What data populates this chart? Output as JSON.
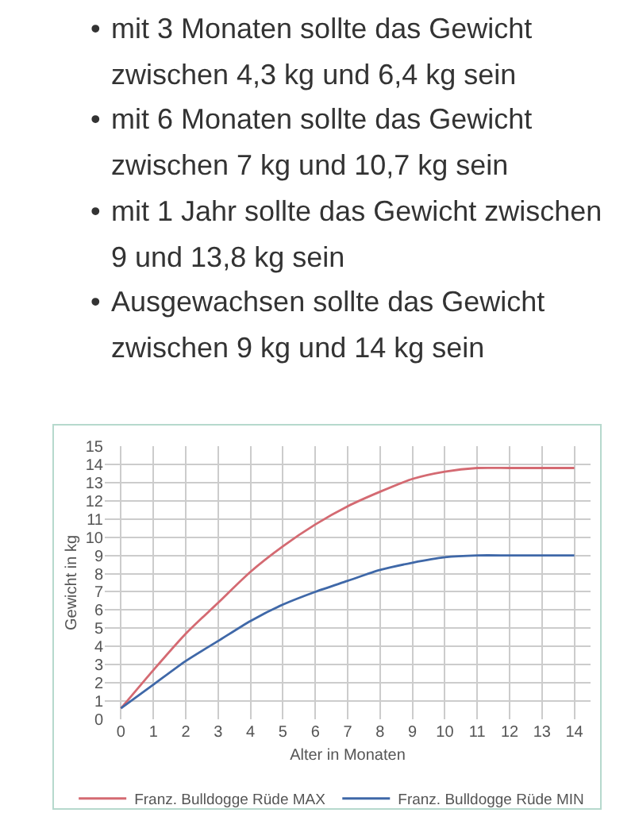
{
  "chart_data": {
    "type": "line",
    "xlabel": "Alter in Monaten",
    "ylabel": "Gewicht in kg",
    "annotations": [
      "• mit 3 Monaten sollte das Gewicht zwischen 4,3 kg und 6,4 kg sein",
      "• mit 6 Monaten sollte das Gewicht zwischen 7 kg und 10,7 kg sein",
      "• mit 1 Jahr sollte das Gewicht zwischen 9 und 13,8 kg sein",
      "• Ausgewachsen sollte das Gewicht zwischen 9 kg und 14 kg sein"
    ],
    "x": [
      0,
      1,
      2,
      3,
      4,
      5,
      6,
      7,
      8,
      9,
      10,
      11,
      12,
      13,
      14
    ],
    "series": [
      {
        "name": "Franz. Bulldogge Rüde MAX",
        "color": "#d46a72",
        "values": [
          0.6,
          2.7,
          4.7,
          6.4,
          8.1,
          9.5,
          10.7,
          11.7,
          12.5,
          13.2,
          13.6,
          13.8,
          13.8,
          13.8,
          13.8
        ]
      },
      {
        "name": "Franz. Bulldogge Rüde MIN",
        "color": "#3f68a8",
        "values": [
          0.6,
          1.9,
          3.2,
          4.3,
          5.4,
          6.3,
          7.0,
          7.6,
          8.2,
          8.6,
          8.9,
          9.0,
          9.0,
          9.0,
          9.0
        ]
      }
    ],
    "xlim": [
      -0.5,
      14.5
    ],
    "ylim": [
      0,
      15
    ],
    "xticks": [
      0,
      1,
      2,
      3,
      4,
      5,
      6,
      7,
      8,
      9,
      10,
      11,
      12,
      13,
      14
    ],
    "yticks": [
      0,
      1,
      2,
      3,
      4,
      5,
      6,
      7,
      8,
      9,
      10,
      11,
      12,
      13,
      14,
      15
    ],
    "grid": true,
    "legend": "bottom"
  }
}
